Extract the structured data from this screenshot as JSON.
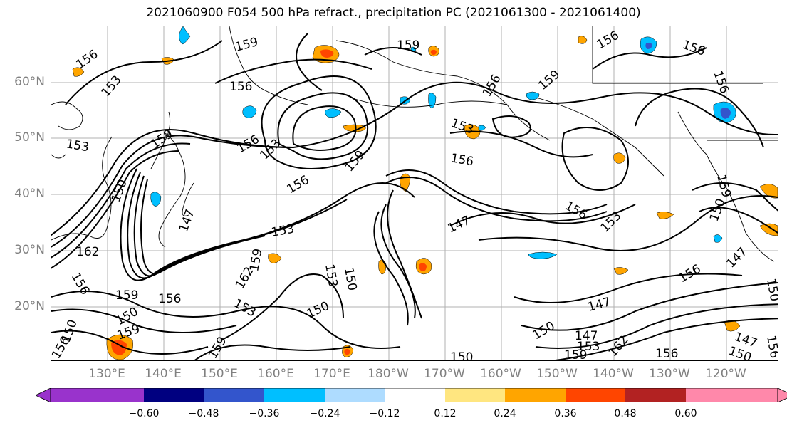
{
  "title": "2021060900 F054 500 hPa refract., precipitation PC (2021061300 - 2021061400)",
  "map": {
    "lat_labels": [
      "60°N",
      "50°N",
      "40°N",
      "30°N",
      "20°N"
    ],
    "lon_labels": [
      "130°E",
      "140°E",
      "150°E",
      "160°E",
      "170°E",
      "180°W",
      "170°W",
      "160°W",
      "150°W",
      "140°W",
      "130°W",
      "120°W"
    ],
    "contour_labels": [
      {
        "text": "156",
        "name": "contour-label-156-nw"
      },
      {
        "text": "153",
        "name": "contour-label-153-nw"
      },
      {
        "text": "159",
        "name": "contour-label-159-north"
      },
      {
        "text": "156",
        "name": "contour-label-156-north"
      },
      {
        "text": "159",
        "name": "contour-label-159-arctic"
      },
      {
        "text": "156",
        "name": "contour-label-156-alaska"
      },
      {
        "text": "159",
        "name": "contour-label-159-alaska"
      },
      {
        "text": "156",
        "name": "contour-label-156-ne"
      },
      {
        "text": "156",
        "name": "contour-label-156-canada"
      },
      {
        "text": "156",
        "name": "contour-label-156-bc"
      },
      {
        "text": "153",
        "name": "contour-label-153-west"
      },
      {
        "text": "159",
        "name": "contour-label-159-japan"
      },
      {
        "text": "156",
        "name": "contour-label-156-kamchatka"
      },
      {
        "text": "153",
        "name": "contour-label-153-low"
      },
      {
        "text": "156",
        "name": "contour-label-156-low"
      },
      {
        "text": "159",
        "name": "contour-label-159-ridge"
      },
      {
        "text": "153",
        "name": "contour-label-153-gulf"
      },
      {
        "text": "156",
        "name": "contour-label-156-central"
      },
      {
        "text": "150",
        "name": "contour-label-150-japan"
      },
      {
        "text": "147",
        "name": "contour-label-147-japan"
      },
      {
        "text": "153",
        "name": "contour-label-153-jet"
      },
      {
        "text": "147",
        "name": "contour-label-147-central"
      },
      {
        "text": "156",
        "name": "contour-label-156-east"
      },
      {
        "text": "153",
        "name": "contour-label-153-east"
      },
      {
        "text": "159",
        "name": "contour-label-159-coast"
      },
      {
        "text": "150",
        "name": "contour-label-150-coast"
      },
      {
        "text": "162",
        "name": "contour-label-162-west"
      },
      {
        "text": "156",
        "name": "contour-label-156-sw"
      },
      {
        "text": "159",
        "name": "contour-label-159-sw"
      },
      {
        "text": "156",
        "name": "contour-label-156-subtrop"
      },
      {
        "text": "162",
        "name": "contour-label-162-mid"
      },
      {
        "text": "159",
        "name": "contour-label-159-mid"
      },
      {
        "text": "153",
        "name": "contour-label-153-mid"
      },
      {
        "text": "150",
        "name": "contour-label-150-mid"
      },
      {
        "text": "153",
        "name": "contour-label-153-trough"
      },
      {
        "text": "150",
        "name": "contour-label-150-trough"
      },
      {
        "text": "150",
        "name": "contour-label-150-south"
      },
      {
        "text": "159",
        "name": "contour-label-159-south"
      },
      {
        "text": "150",
        "name": "contour-label-150-sw2"
      },
      {
        "text": "156",
        "name": "contour-label-156-sw2"
      },
      {
        "text": "159",
        "name": "contour-label-159-sw2"
      },
      {
        "text": "150",
        "name": "contour-label-150-bottom"
      },
      {
        "text": "150",
        "name": "contour-label-150-bottom2"
      },
      {
        "text": "147",
        "name": "contour-label-147-se"
      },
      {
        "text": "147",
        "name": "contour-label-147-se2"
      },
      {
        "text": "153",
        "name": "contour-label-153-se"
      },
      {
        "text": "159",
        "name": "contour-label-159-se"
      },
      {
        "text": "162",
        "name": "contour-label-162-se"
      },
      {
        "text": "156",
        "name": "contour-label-156-se"
      },
      {
        "text": "156",
        "name": "contour-label-156-se2"
      },
      {
        "text": "147",
        "name": "contour-label-147-far-east"
      },
      {
        "text": "147",
        "name": "contour-label-147-far-east2"
      },
      {
        "text": "150",
        "name": "contour-label-150-far-east"
      },
      {
        "text": "156",
        "name": "contour-label-156-far-east"
      },
      {
        "text": "150",
        "name": "contour-label-150-edge"
      },
      {
        "text": "159",
        "name": "contour-label-159-edge"
      }
    ]
  },
  "colorbar": {
    "colors": [
      "#9933cc",
      "#000080",
      "#3355cc",
      "#00bfff",
      "#aedcff",
      "#ffffff",
      "#ffe680",
      "#ffa500",
      "#ff4500",
      "#b22222",
      "#ff88aa"
    ],
    "ticks": [
      "−0.60",
      "−0.48",
      "−0.36",
      "−0.24",
      "−0.12",
      "0.12",
      "0.24",
      "0.36",
      "0.48",
      "0.60"
    ]
  }
}
